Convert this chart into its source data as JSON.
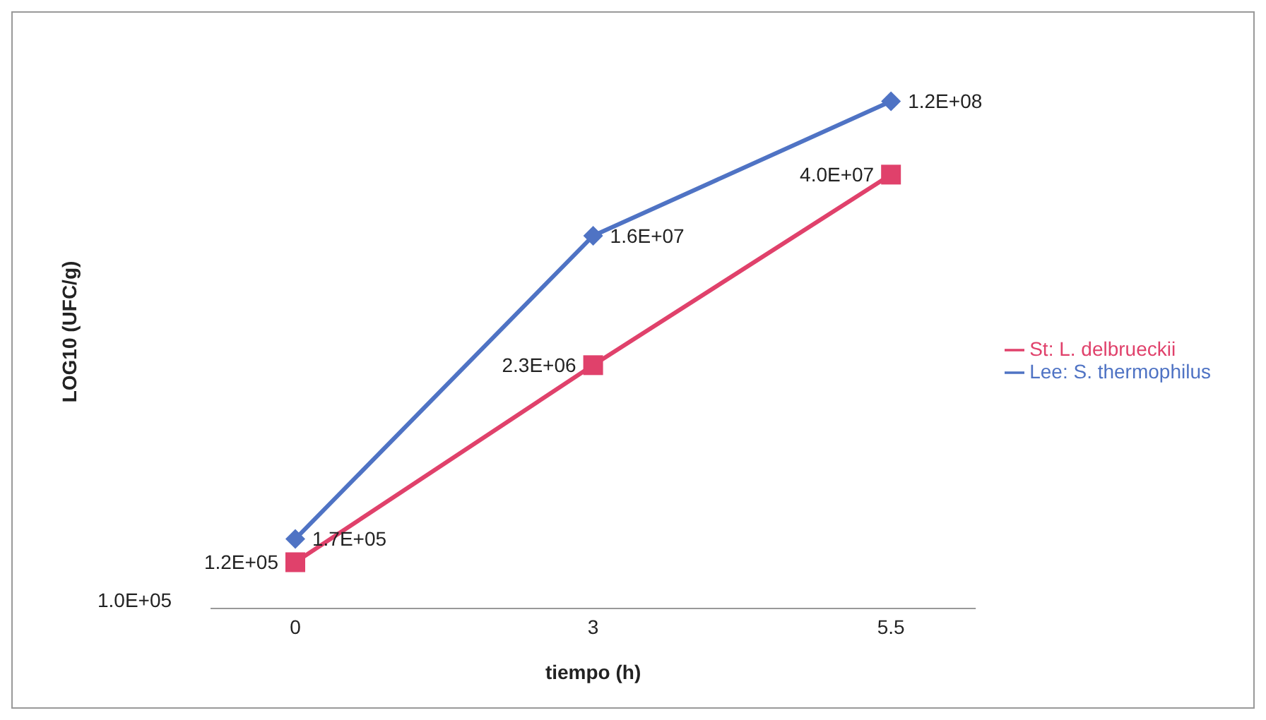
{
  "chart_data": {
    "type": "line",
    "xlabel": "tiempo (h)",
    "ylabel": "LOG10 (UFC/g)",
    "categories": [
      "0",
      "3",
      "5.5"
    ],
    "series": [
      {
        "name": "St: L. delbrueckii",
        "color": "#e0416b",
        "marker": "square",
        "values": [
          120000,
          2300000,
          40000000
        ],
        "value_labels": [
          "1.2E+05",
          "2.3E+06",
          "4.0E+07"
        ]
      },
      {
        "name": "Lee: S. thermophilus",
        "color": "#4f73c4",
        "marker": "diamond",
        "values": [
          170000,
          16000000,
          120000000
        ],
        "value_labels": [
          "1.7E+05",
          "1.6E+07",
          "1.2E+08"
        ]
      }
    ],
    "log": "y",
    "annotations": [
      "1.0E+05"
    ],
    "legend": "right",
    "line_style": "solid"
  }
}
